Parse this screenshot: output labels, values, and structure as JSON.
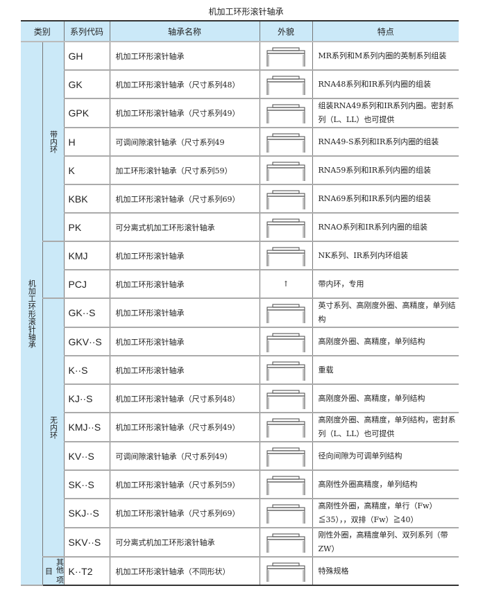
{
  "title": "机加工环形滚针轴承",
  "headers": [
    "类别",
    "系列代码",
    "轴承名称",
    "外貌",
    "特点"
  ],
  "category": "机加工环形滚针轴承",
  "groups": [
    "带内环",
    "",
    "无内环",
    "其他 项目"
  ],
  "rows": [
    {
      "code": "GH",
      "name": "机加工环形滚针轴承",
      "feature": "MR系列和M系列内圈的英制系列组装",
      "icon": "bearing-profile-icon"
    },
    {
      "code": "GK",
      "name": "机加工环形滚针轴承（尺寸系列48）",
      "feature": "RNA48系列和IR系列内圈的组装",
      "icon": "bearing-profile-icon"
    },
    {
      "code": "GPK",
      "name": "机加工环形滚针轴承（尺寸系列49）",
      "feature": "组装RNA49系列和IR系列内圈。密封系列（L、LL）也可提供",
      "icon": "bearing-profile-icon"
    },
    {
      "code": "H",
      "name": "可调间隙滚针轴承（尺寸系列49",
      "feature": "RNA49-S系列和IR系列内圈的组装",
      "icon": "bearing-profile-icon"
    },
    {
      "code": "K",
      "name": "加工环形滚针轴承（尺寸系列59）",
      "feature": "RNA59系列和IR系列内圈的组装",
      "icon": "bearing-profile-icon"
    },
    {
      "code": "KBK",
      "name": "机加工环形滚针轴承（尺寸系列69）",
      "feature": "RNA69系列和IR系列内圈的组装",
      "icon": "bearing-profile-icon"
    },
    {
      "code": "PK",
      "name": "可分离式机加工环形滚针轴承",
      "feature": "RNAO系列和IR系列内圈的组装",
      "icon": "bearing-profile-icon"
    },
    {
      "code": "KMJ",
      "name": "机加工环形滚针轴承",
      "feature": "NK系列、IR系列内环组装",
      "icon": "bearing-profile-icon"
    },
    {
      "code": "PCJ",
      "name": "机加工环形滚针轴承",
      "feature": "带内环，专用",
      "icon": "arrow-up-icon",
      "symbol": "↑"
    },
    {
      "code": "GK··S",
      "name": "机加工环形滚针轴承",
      "feature": "英寸系列、高刚度外圈、高精度，单列结构",
      "icon": "bearing-profile-icon"
    },
    {
      "code": "GKV··S",
      "name": "机加工环形滚针轴承",
      "feature": "高刚度外圈、高精度，单列结构",
      "icon": "bearing-profile-icon"
    },
    {
      "code": "K··S",
      "name": "机加工环形滚针轴承",
      "feature": "重载",
      "icon": "bearing-profile-icon"
    },
    {
      "code": "KJ··S",
      "name": "机加工环形滚针轴承（尺寸系列48）",
      "feature": "高刚度外圈、高精度，单列结构",
      "icon": "bearing-profile-icon"
    },
    {
      "code": "KMJ··S",
      "name": "机加工环形滚针轴承（尺寸系列49）",
      "feature": "高刚度外圈、高精度，单列结构，密封系列（L、LL）也可提供",
      "icon": "bearing-profile-icon"
    },
    {
      "code": "KV··S",
      "name": "可调间隙滚针轴承（尺寸系列49）",
      "feature": "径向间隙为可调单列结构",
      "icon": "bearing-profile-icon"
    },
    {
      "code": "SK··S",
      "name": "机加工环形滚针轴承（尺寸系列59）",
      "feature": "高刚性外圈高精度，单列结构",
      "icon": "bearing-profile-icon"
    },
    {
      "code": "SKJ··S",
      "name": "机加工环形滚针轴承（尺寸系列69）",
      "feature": "高刚性外圈，高精度，单行（Fw）≦35），，双排（Fw）≧40）",
      "icon": "bearing-profile-icon"
    },
    {
      "code": "SKV··S",
      "name": "可分离式机加工环形滚针轴承",
      "feature": "刚性外圈，高精度单列、双列系列（带ZW）",
      "icon": "bearing-profile-icon"
    },
    {
      "code": "K··T2",
      "name": "机加工环形滚针轴承（不同形状）",
      "feature": "特殊规格",
      "icon": "bearing-profile-icon"
    }
  ]
}
